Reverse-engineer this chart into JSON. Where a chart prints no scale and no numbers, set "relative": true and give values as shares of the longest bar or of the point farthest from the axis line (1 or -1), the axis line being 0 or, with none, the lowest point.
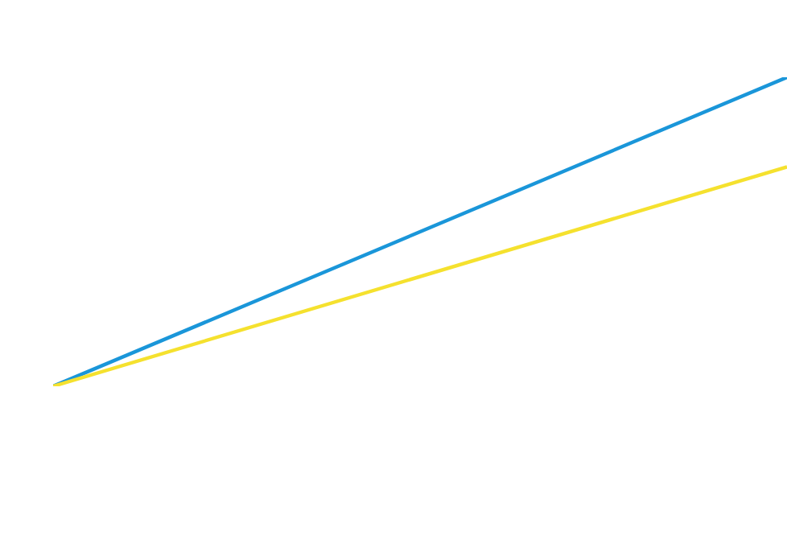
{
  "chart_data": {
    "type": "line",
    "relative": true,
    "categories": [
      null,
      null
    ],
    "series": [
      {
        "color": "#1a96d9",
        "values": [
          0,
          1
        ]
      },
      {
        "color": "#f5e12e",
        "values": [
          0,
          0.71
        ]
      }
    ],
    "marker": "none",
    "line_style": "solid"
  }
}
